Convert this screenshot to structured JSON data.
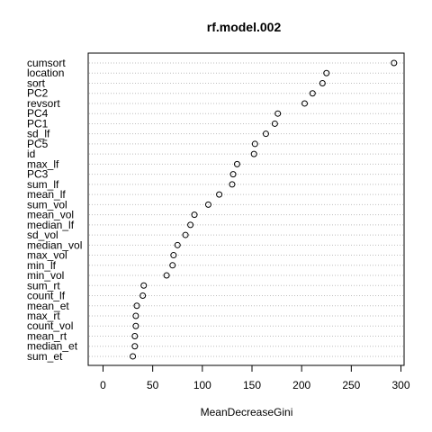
{
  "chart_data": {
    "type": "scatter",
    "title": "rf.model.002",
    "xlabel": "MeanDecreaseGini",
    "xlim": [
      -10,
      300
    ],
    "xticks": [
      0,
      50,
      100,
      150,
      200,
      250,
      300
    ],
    "grid": true,
    "categories": [
      "cumsort",
      "location",
      "sort",
      "PC2",
      "revsort",
      "PC4",
      "PC1",
      "sd_lf",
      "PC5",
      "id",
      "max_lf",
      "PC3",
      "sum_lf",
      "mean_lf",
      "sum_vol",
      "mean_vol",
      "median_lf",
      "sd_vol",
      "median_vol",
      "max_vol",
      "min_lf",
      "min_vol",
      "sum_rt",
      "count_lf",
      "mean_et",
      "max_rt",
      "count_vol",
      "mean_rt",
      "median_et",
      "sum_et"
    ],
    "values": [
      293,
      225,
      221,
      211,
      203,
      176,
      173,
      164,
      153,
      152,
      135,
      131,
      130,
      117,
      106,
      92,
      88,
      83,
      75,
      71,
      70,
      64,
      41,
      40,
      34,
      33,
      33,
      32,
      32,
      30
    ]
  }
}
